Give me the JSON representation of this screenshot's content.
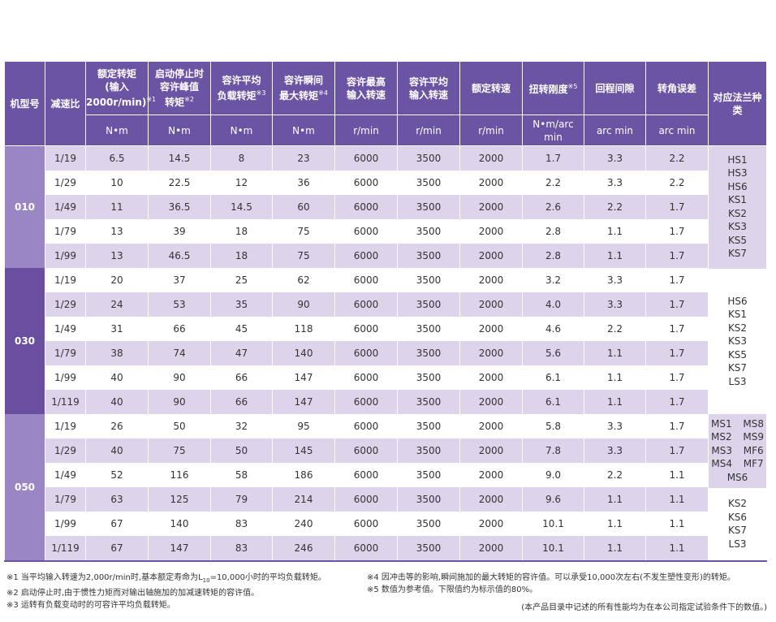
{
  "table": {
    "header": {
      "model": "机型号",
      "ratio": "减速比",
      "flange": "对应法兰种类",
      "columns": [
        {
          "title": [
            "额定转矩",
            "(输入",
            "2000r/min)"
          ],
          "note": "※1",
          "unit": "N•m"
        },
        {
          "title": [
            "启动停止时",
            "容许峰值",
            "转矩"
          ],
          "note": "※2",
          "unit": "N•m"
        },
        {
          "title": [
            "容许平均",
            "负载转矩"
          ],
          "note": "※3",
          "unit": "N•m"
        },
        {
          "title": [
            "容许瞬间",
            "最大转矩"
          ],
          "note": "※4",
          "unit": "N•m"
        },
        {
          "title": [
            "容许最高",
            "输入转速"
          ],
          "unit": "r/min"
        },
        {
          "title": [
            "容许平均",
            "输入转速"
          ],
          "unit": "r/min"
        },
        {
          "title": [
            "额定转速"
          ],
          "unit": "r/min"
        },
        {
          "title": [
            "扭转刚度"
          ],
          "note": "※5",
          "unit": "N•m/arc min"
        },
        {
          "title": [
            "回程间隙"
          ],
          "unit": "arc min"
        },
        {
          "title": [
            "转角误差"
          ],
          "unit": "arc min"
        }
      ]
    },
    "groups": [
      {
        "model": "010",
        "blocks": [
          {
            "flange": [
              "HS1",
              "HS3",
              "HS6",
              "KS1",
              "KS2",
              "KS3",
              "KS5",
              "KS7"
            ],
            "rows": [
              [
                "1/19",
                "6.5",
                "14.5",
                "8",
                "23",
                "6000",
                "3500",
                "2000",
                "1.7",
                "3.3",
                "2.2"
              ],
              [
                "1/29",
                "10",
                "22.5",
                "12",
                "36",
                "6000",
                "3500",
                "2000",
                "2.2",
                "3.3",
                "2.2"
              ],
              [
                "1/49",
                "11",
                "36.5",
                "14.5",
                "60",
                "6000",
                "3500",
                "2000",
                "2.6",
                "2.2",
                "1.7"
              ],
              [
                "1/79",
                "13",
                "39",
                "18",
                "75",
                "6000",
                "3500",
                "2000",
                "2.8",
                "1.1",
                "1.7"
              ],
              [
                "1/99",
                "13",
                "46.5",
                "18",
                "75",
                "6000",
                "3500",
                "2000",
                "2.8",
                "1.1",
                "1.7"
              ]
            ]
          }
        ]
      },
      {
        "model": "030",
        "blocks": [
          {
            "flange": [
              "HS6",
              "KS1",
              "KS2",
              "KS3",
              "KS5",
              "KS7",
              "LS3"
            ],
            "rows": [
              [
                "1/19",
                "20",
                "37",
                "25",
                "62",
                "6000",
                "3500",
                "2000",
                "3.2",
                "3.3",
                "1.7"
              ],
              [
                "1/29",
                "24",
                "53",
                "35",
                "90",
                "6000",
                "3500",
                "2000",
                "4.0",
                "3.3",
                "1.7"
              ],
              [
                "1/49",
                "31",
                "66",
                "45",
                "118",
                "6000",
                "3500",
                "2000",
                "4.6",
                "2.2",
                "1.7"
              ],
              [
                "1/79",
                "38",
                "74",
                "47",
                "140",
                "6000",
                "3500",
                "2000",
                "5.6",
                "1.1",
                "1.7"
              ],
              [
                "1/99",
                "40",
                "90",
                "66",
                "147",
                "6000",
                "3500",
                "2000",
                "6.1",
                "1.1",
                "1.7"
              ],
              [
                "1/119",
                "40",
                "90",
                "66",
                "147",
                "6000",
                "3500",
                "2000",
                "6.1",
                "1.1",
                "1.7"
              ]
            ]
          }
        ]
      },
      {
        "model": "050",
        "blocks": [
          {
            "flange": [
              "MS1 MS8",
              "MS2 MS9",
              "MS3 MF6",
              "MS4 MF7",
              "MS6"
            ],
            "rows": [
              [
                "1/19",
                "26",
                "50",
                "32",
                "95",
                "6000",
                "3500",
                "2000",
                "5.8",
                "3.3",
                "1.7"
              ],
              [
                "1/29",
                "40",
                "75",
                "50",
                "145",
                "6000",
                "3500",
                "2000",
                "7.8",
                "3.3",
                "1.7"
              ],
              [
                "1/49",
                "52",
                "116",
                "58",
                "186",
                "6000",
                "3500",
                "2000",
                "9.0",
                "2.2",
                "1.1"
              ]
            ]
          },
          {
            "flange": [
              "KS2",
              "KS6",
              "KS7",
              "LS3"
            ],
            "rows": [
              [
                "1/79",
                "63",
                "125",
                "79",
                "214",
                "6000",
                "3500",
                "2000",
                "9.6",
                "1.1",
                "1.1"
              ],
              [
                "1/99",
                "67",
                "140",
                "83",
                "240",
                "6000",
                "3500",
                "2000",
                "10.1",
                "1.1",
                "1.1"
              ],
              [
                "1/119",
                "67",
                "147",
                "83",
                "246",
                "6000",
                "3500",
                "2000",
                "10.1",
                "1.1",
                "1.1"
              ]
            ]
          }
        ]
      }
    ],
    "notes": {
      "note1": {
        "before": "※1 当平均输入转速为2,000r/min时,基本额定寿命为L",
        "sub": "10",
        "after": "=10,000小时的平均负载转矩。"
      },
      "note2": "※2 启动停止时,由于惯性力矩而对输出轴施加的加减速转矩的容许值。",
      "note3": "※3 运转有负载变动时的可容许平均负载转矩。",
      "note4": "※4 因冲击等的影响,瞬间施加的最大转矩的容许值。可以承受10,000次左右(不发生塑性变形)的转矩。",
      "note5": "※5 数值为参考值。下限值约为标示值的80%。",
      "footer": "(本产品目录中记述的所有性能均为在本公司指定试验条件下的数值。)"
    }
  }
}
